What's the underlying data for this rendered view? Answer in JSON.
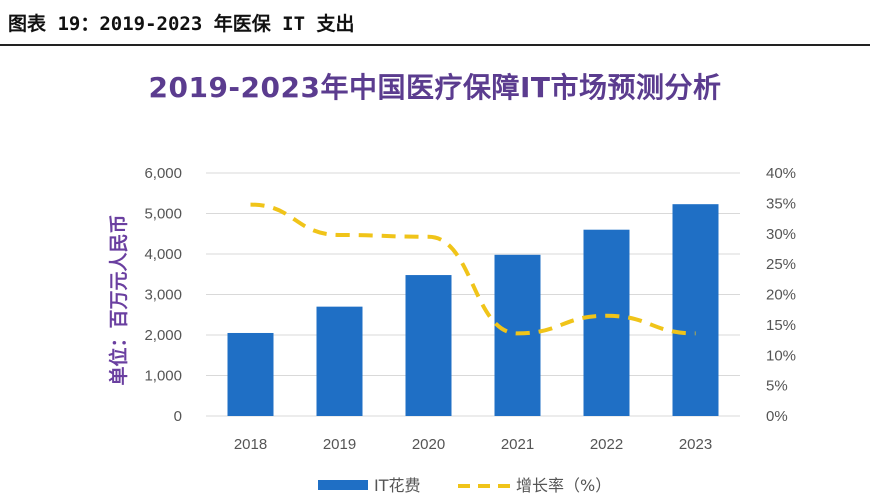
{
  "caption": "图表 19：2019-2023 年医保 IT 支出",
  "chart_data": {
    "type": "bar",
    "title": "2019-2023年中国医疗保障IT市场预测分析",
    "categories": [
      "2018",
      "2019",
      "2020",
      "2021",
      "2022",
      "2023"
    ],
    "ylabel": "单位：百万元人民币",
    "ylim": [
      0,
      6000
    ],
    "y_ticks": [
      "6,000",
      "5,000",
      "4,000",
      "3,000",
      "2,000",
      "1,000",
      "0"
    ],
    "y2lim": [
      0,
      40
    ],
    "y2_ticks": [
      "40%",
      "35%",
      "30%",
      "25%",
      "20%",
      "15%",
      "10%",
      "5%",
      "0%"
    ],
    "series": [
      {
        "name": "IT花费",
        "type": "bar",
        "axis": "left",
        "values": [
          2050,
          2700,
          3480,
          3980,
          4600,
          5230
        ],
        "color": "#1f6fc5"
      },
      {
        "name": "增长率（%）",
        "type": "line",
        "axis": "right",
        "style": "dashed",
        "values": [
          34.8,
          29.8,
          29.5,
          13.6,
          16.5,
          13.6
        ],
        "color": "#f0c419"
      }
    ],
    "grid": true,
    "legend_position": "bottom"
  }
}
